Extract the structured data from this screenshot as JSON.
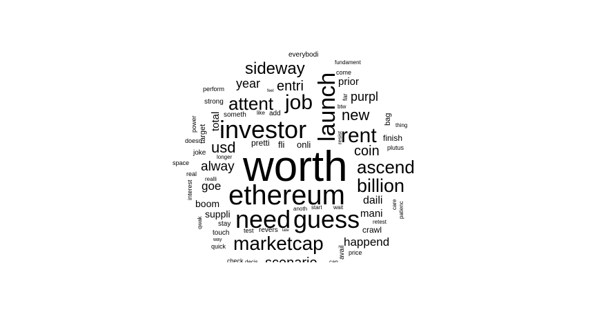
{
  "word_cloud": {
    "color": "#000000",
    "background": "#ffffff",
    "words": [
      {
        "text": "worth",
        "size": 62
      },
      {
        "text": "ethereum",
        "size": 40
      },
      {
        "text": "guess",
        "size": 36
      },
      {
        "text": "need",
        "size": 36
      },
      {
        "text": "investor",
        "size": 36
      },
      {
        "text": "launch",
        "size": 34
      },
      {
        "text": "marketcap",
        "size": 28
      },
      {
        "text": "rent",
        "size": 30
      },
      {
        "text": "job",
        "size": 30
      },
      {
        "text": "billion",
        "size": 27
      },
      {
        "text": "ascend",
        "size": 26
      },
      {
        "text": "attent",
        "size": 26
      },
      {
        "text": "sideway",
        "size": 24
      },
      {
        "text": "new",
        "size": 22
      },
      {
        "text": "usd",
        "size": 22
      },
      {
        "text": "coin",
        "size": 20
      },
      {
        "text": "entri",
        "size": 20
      },
      {
        "text": "scenario",
        "size": 20
      },
      {
        "text": "alway",
        "size": 19
      },
      {
        "text": "year",
        "size": 18
      },
      {
        "text": "purpl",
        "size": 18
      },
      {
        "text": "happend",
        "size": 17
      },
      {
        "text": "goe",
        "size": 17
      },
      {
        "text": "daili",
        "size": 16
      },
      {
        "text": "mani",
        "size": 15
      },
      {
        "text": "prior",
        "size": 15
      },
      {
        "text": "total",
        "size": 15
      },
      {
        "text": "boom",
        "size": 14
      },
      {
        "text": "suppli",
        "size": 14
      },
      {
        "text": "onli",
        "size": 13
      },
      {
        "text": "pretti",
        "size": 12
      },
      {
        "text": "fli",
        "size": 13
      },
      {
        "text": "crawl",
        "size": 12
      },
      {
        "text": "finish",
        "size": 12
      },
      {
        "text": "bag",
        "size": 11
      },
      {
        "text": "target",
        "size": 11
      },
      {
        "text": "power",
        "size": 9
      },
      {
        "text": "stay",
        "size": 10
      },
      {
        "text": "touch",
        "size": 10
      },
      {
        "text": "revers",
        "size": 10
      },
      {
        "text": "test",
        "size": 9
      },
      {
        "text": "avail",
        "size": 10
      },
      {
        "text": "someth",
        "size": 10
      },
      {
        "text": "add",
        "size": 10
      },
      {
        "text": "joke",
        "size": 10
      },
      {
        "text": "space",
        "size": 9
      },
      {
        "text": "real",
        "size": 9
      },
      {
        "text": "strong",
        "size": 10
      },
      {
        "text": "perform",
        "size": 9
      },
      {
        "text": "doesn",
        "size": 9
      },
      {
        "text": "interest",
        "size": 9
      },
      {
        "text": "realli",
        "size": 8
      },
      {
        "text": "qwak",
        "size": 8
      },
      {
        "text": "way",
        "size": 7
      },
      {
        "text": "quick",
        "size": 9
      },
      {
        "text": "check",
        "size": 9
      },
      {
        "text": "decis",
        "size": 8
      },
      {
        "text": "can",
        "size": 8
      },
      {
        "text": "price",
        "size": 9
      },
      {
        "text": "retest",
        "size": 8
      },
      {
        "text": "care",
        "size": 8
      },
      {
        "text": "patienc",
        "size": 8
      },
      {
        "text": "plutus",
        "size": 9
      },
      {
        "text": "thing",
        "size": 8
      },
      {
        "text": "resist",
        "size": 8
      },
      {
        "text": "wait",
        "size": 8
      },
      {
        "text": "start",
        "size": 8
      },
      {
        "text": "anoth",
        "size": 8
      },
      {
        "text": "late",
        "size": 6
      },
      {
        "text": "longer",
        "size": 8
      },
      {
        "text": "like",
        "size": 8
      },
      {
        "text": "feel",
        "size": 6
      },
      {
        "text": "far",
        "size": 9
      },
      {
        "text": "btw",
        "size": 8
      },
      {
        "text": "come",
        "size": 9
      },
      {
        "text": "fundament",
        "size": 8
      },
      {
        "text": "everybodi",
        "size": 10
      }
    ]
  }
}
